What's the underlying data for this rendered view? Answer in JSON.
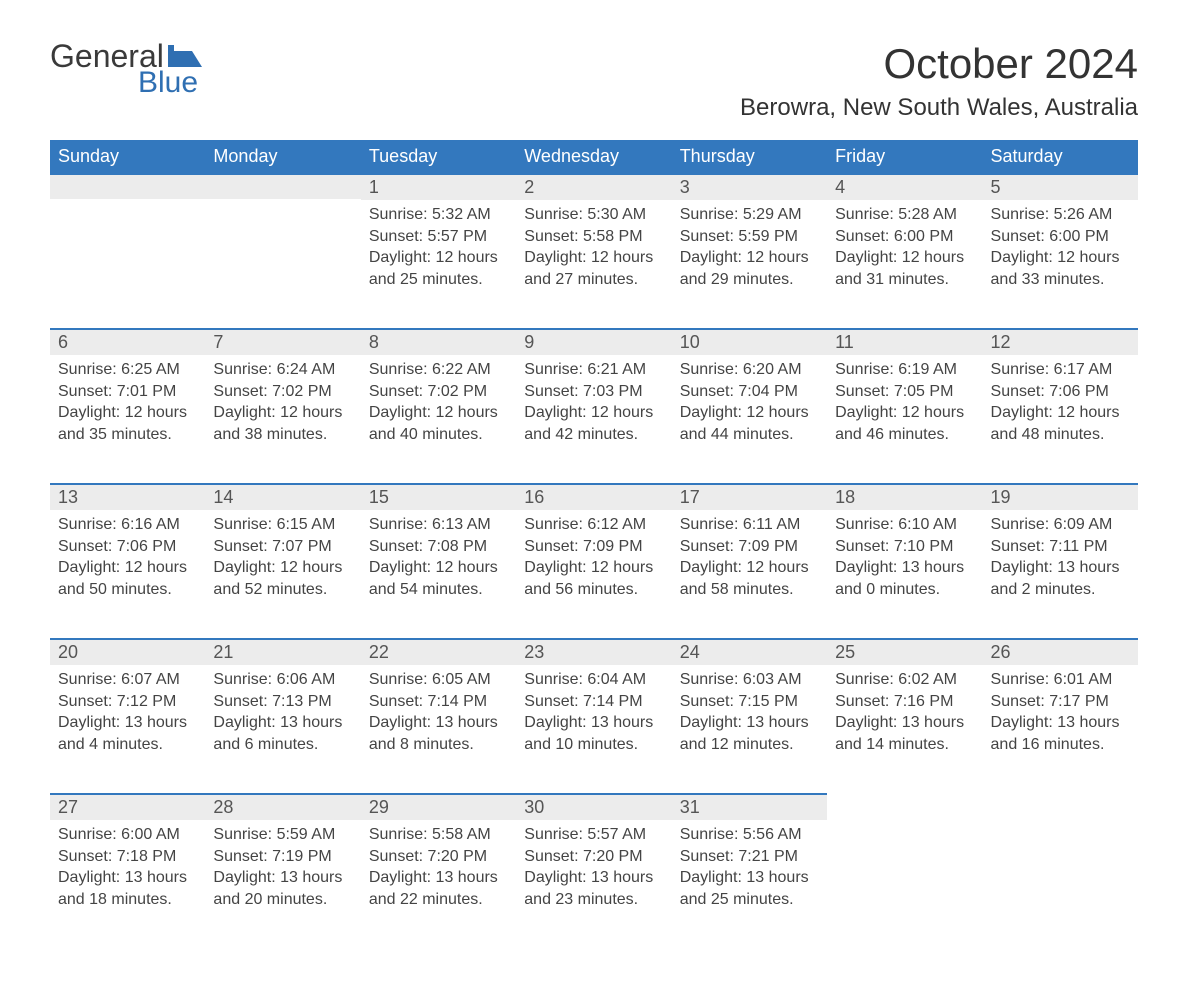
{
  "brand": {
    "word1": "General",
    "word2": "Blue",
    "flag_color": "#2f6fb2"
  },
  "title": "October 2024",
  "location": "Berowra, New South Wales, Australia",
  "colors": {
    "header_bg": "#3378be",
    "header_text": "#ffffff",
    "daynum_bg": "#ececec",
    "row_border": "#3378be",
    "body_text": "#444444"
  },
  "week_header": [
    "Sunday",
    "Monday",
    "Tuesday",
    "Wednesday",
    "Thursday",
    "Friday",
    "Saturday"
  ],
  "layout": {
    "first_weekday_index": 2,
    "num_days": 31,
    "cols": 7
  },
  "labels": {
    "sunrise": "Sunrise:",
    "sunset": "Sunset:",
    "daylight": "Daylight:"
  },
  "days": [
    {
      "n": 1,
      "sunrise": "5:32 AM",
      "sunset": "5:57 PM",
      "daylight": "12 hours and 25 minutes."
    },
    {
      "n": 2,
      "sunrise": "5:30 AM",
      "sunset": "5:58 PM",
      "daylight": "12 hours and 27 minutes."
    },
    {
      "n": 3,
      "sunrise": "5:29 AM",
      "sunset": "5:59 PM",
      "daylight": "12 hours and 29 minutes."
    },
    {
      "n": 4,
      "sunrise": "5:28 AM",
      "sunset": "6:00 PM",
      "daylight": "12 hours and 31 minutes."
    },
    {
      "n": 5,
      "sunrise": "5:26 AM",
      "sunset": "6:00 PM",
      "daylight": "12 hours and 33 minutes."
    },
    {
      "n": 6,
      "sunrise": "6:25 AM",
      "sunset": "7:01 PM",
      "daylight": "12 hours and 35 minutes."
    },
    {
      "n": 7,
      "sunrise": "6:24 AM",
      "sunset": "7:02 PM",
      "daylight": "12 hours and 38 minutes."
    },
    {
      "n": 8,
      "sunrise": "6:22 AM",
      "sunset": "7:02 PM",
      "daylight": "12 hours and 40 minutes."
    },
    {
      "n": 9,
      "sunrise": "6:21 AM",
      "sunset": "7:03 PM",
      "daylight": "12 hours and 42 minutes."
    },
    {
      "n": 10,
      "sunrise": "6:20 AM",
      "sunset": "7:04 PM",
      "daylight": "12 hours and 44 minutes."
    },
    {
      "n": 11,
      "sunrise": "6:19 AM",
      "sunset": "7:05 PM",
      "daylight": "12 hours and 46 minutes."
    },
    {
      "n": 12,
      "sunrise": "6:17 AM",
      "sunset": "7:06 PM",
      "daylight": "12 hours and 48 minutes."
    },
    {
      "n": 13,
      "sunrise": "6:16 AM",
      "sunset": "7:06 PM",
      "daylight": "12 hours and 50 minutes."
    },
    {
      "n": 14,
      "sunrise": "6:15 AM",
      "sunset": "7:07 PM",
      "daylight": "12 hours and 52 minutes."
    },
    {
      "n": 15,
      "sunrise": "6:13 AM",
      "sunset": "7:08 PM",
      "daylight": "12 hours and 54 minutes."
    },
    {
      "n": 16,
      "sunrise": "6:12 AM",
      "sunset": "7:09 PM",
      "daylight": "12 hours and 56 minutes."
    },
    {
      "n": 17,
      "sunrise": "6:11 AM",
      "sunset": "7:09 PM",
      "daylight": "12 hours and 58 minutes."
    },
    {
      "n": 18,
      "sunrise": "6:10 AM",
      "sunset": "7:10 PM",
      "daylight": "13 hours and 0 minutes."
    },
    {
      "n": 19,
      "sunrise": "6:09 AM",
      "sunset": "7:11 PM",
      "daylight": "13 hours and 2 minutes."
    },
    {
      "n": 20,
      "sunrise": "6:07 AM",
      "sunset": "7:12 PM",
      "daylight": "13 hours and 4 minutes."
    },
    {
      "n": 21,
      "sunrise": "6:06 AM",
      "sunset": "7:13 PM",
      "daylight": "13 hours and 6 minutes."
    },
    {
      "n": 22,
      "sunrise": "6:05 AM",
      "sunset": "7:14 PM",
      "daylight": "13 hours and 8 minutes."
    },
    {
      "n": 23,
      "sunrise": "6:04 AM",
      "sunset": "7:14 PM",
      "daylight": "13 hours and 10 minutes."
    },
    {
      "n": 24,
      "sunrise": "6:03 AM",
      "sunset": "7:15 PM",
      "daylight": "13 hours and 12 minutes."
    },
    {
      "n": 25,
      "sunrise": "6:02 AM",
      "sunset": "7:16 PM",
      "daylight": "13 hours and 14 minutes."
    },
    {
      "n": 26,
      "sunrise": "6:01 AM",
      "sunset": "7:17 PM",
      "daylight": "13 hours and 16 minutes."
    },
    {
      "n": 27,
      "sunrise": "6:00 AM",
      "sunset": "7:18 PM",
      "daylight": "13 hours and 18 minutes."
    },
    {
      "n": 28,
      "sunrise": "5:59 AM",
      "sunset": "7:19 PM",
      "daylight": "13 hours and 20 minutes."
    },
    {
      "n": 29,
      "sunrise": "5:58 AM",
      "sunset": "7:20 PM",
      "daylight": "13 hours and 22 minutes."
    },
    {
      "n": 30,
      "sunrise": "5:57 AM",
      "sunset": "7:20 PM",
      "daylight": "13 hours and 23 minutes."
    },
    {
      "n": 31,
      "sunrise": "5:56 AM",
      "sunset": "7:21 PM",
      "daylight": "13 hours and 25 minutes."
    }
  ]
}
